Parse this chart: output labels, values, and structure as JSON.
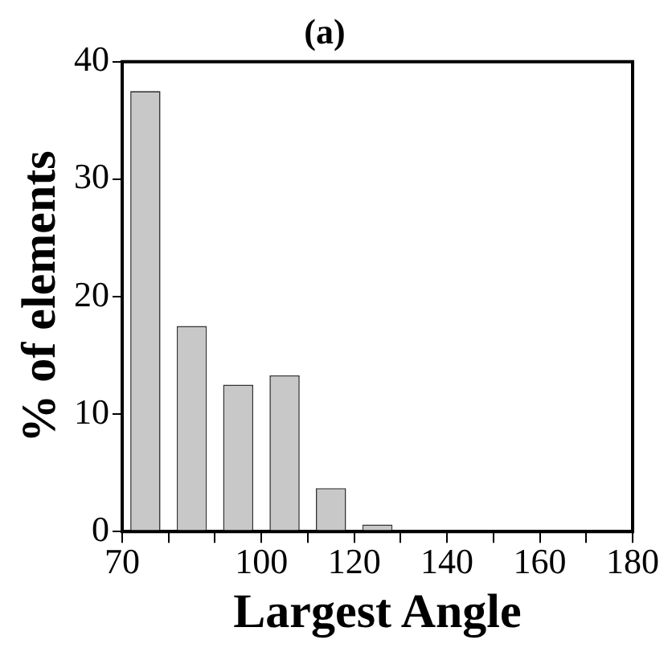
{
  "chart_data": {
    "type": "histogram",
    "title": "(a)",
    "xlabel": "Largest Angle",
    "ylabel": "% of elements",
    "bins": [
      70,
      80,
      90,
      100,
      110,
      120,
      130,
      140,
      150,
      160,
      170,
      180
    ],
    "values": [
      37.5,
      17.5,
      12.5,
      13.3,
      3.7,
      0.6,
      0,
      0,
      0,
      0,
      0
    ],
    "color": "#c8c8c8",
    "xlim": [
      70,
      180
    ],
    "xticks": [
      70,
      {
        "value": 80,
        "label": null
      },
      {
        "value": 90,
        "label": null
      },
      100,
      {
        "value": 110,
        "label": null
      },
      120,
      {
        "value": 130,
        "label": null
      },
      140,
      {
        "value": 150,
        "label": null
      },
      160,
      {
        "value": 170,
        "label": null
      },
      180
    ],
    "ylim": [
      0,
      40
    ],
    "yticks": [
      0,
      10,
      20,
      30,
      40
    ],
    "grid": false,
    "legend": false
  }
}
